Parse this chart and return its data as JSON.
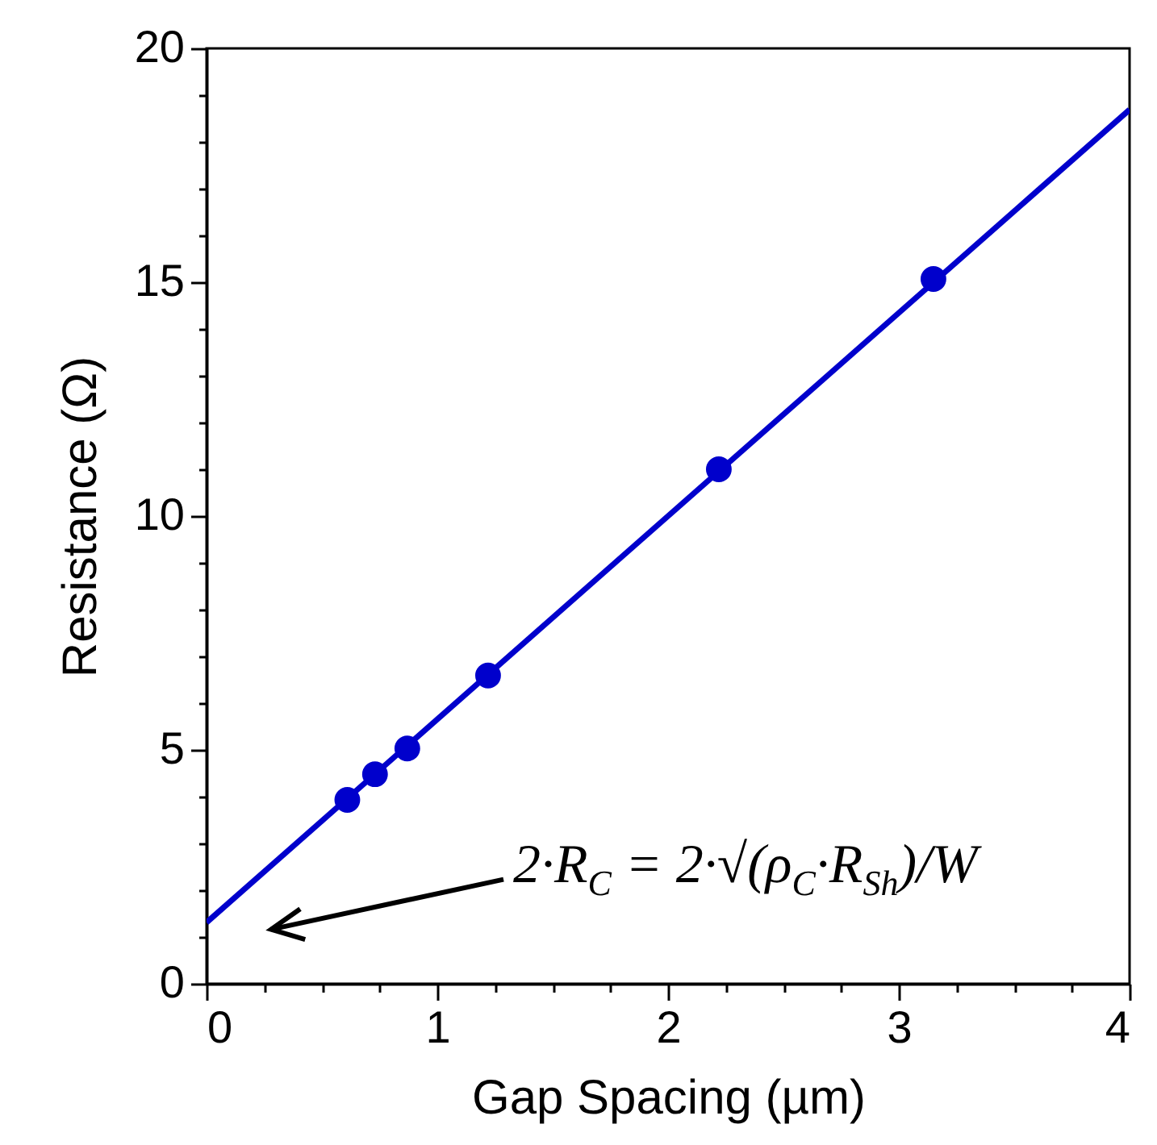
{
  "chart_data": {
    "type": "scatter",
    "xlabel": "Gap Spacing (µm)",
    "ylabel": "Resistance (Ω)",
    "xlim": [
      0,
      4
    ],
    "ylim": [
      0,
      20
    ],
    "xticks": [
      0,
      {
        "value": 0.25,
        "label": null
      },
      {
        "value": 0.5,
        "label": null
      },
      {
        "value": 0.75,
        "label": null
      },
      1,
      {
        "value": 1.25,
        "label": null
      },
      {
        "value": 1.5,
        "label": null
      },
      {
        "value": 1.75,
        "label": null
      },
      2,
      {
        "value": 2.25,
        "label": null
      },
      {
        "value": 2.5,
        "label": null
      },
      {
        "value": 2.75,
        "label": null
      },
      3,
      {
        "value": 3.25,
        "label": null
      },
      {
        "value": 3.5,
        "label": null
      },
      {
        "value": 3.75,
        "label": null
      },
      4
    ],
    "yticks": [
      0,
      {
        "value": 1,
        "label": null
      },
      {
        "value": 2,
        "label": null
      },
      {
        "value": 3,
        "label": null
      },
      {
        "value": 4,
        "label": null
      },
      5,
      {
        "value": 6,
        "label": null
      },
      {
        "value": 7,
        "label": null
      },
      {
        "value": 8,
        "label": null
      },
      {
        "value": 9,
        "label": null
      },
      10,
      {
        "value": 11,
        "label": null
      },
      {
        "value": 12,
        "label": null
      },
      {
        "value": 13,
        "label": null
      },
      {
        "value": 14,
        "label": null
      },
      15,
      {
        "value": 16,
        "label": null
      },
      {
        "value": 17,
        "label": null
      },
      {
        "value": 18,
        "label": null
      },
      {
        "value": 19,
        "label": null
      },
      20
    ],
    "grid": false,
    "marker": "circle",
    "x": [
      0.61,
      0.73,
      0.87,
      1.22,
      2.22,
      3.15
    ],
    "series": [
      {
        "type": "line",
        "color": "#0000cc",
        "x": [
          0,
          4
        ],
        "values": [
          1.31,
          18.69
        ],
        "marker": "none",
        "line_style": "solid"
      },
      {
        "color": "#0000cc",
        "values": [
          3.93,
          4.48,
          5.03,
          6.59,
          11.0,
          15.07
        ]
      }
    ],
    "annotations": [
      "2·R$_{C}$ = 2·√(ρ$_{C}$·R$_{Sh}$)/W"
    ]
  }
}
